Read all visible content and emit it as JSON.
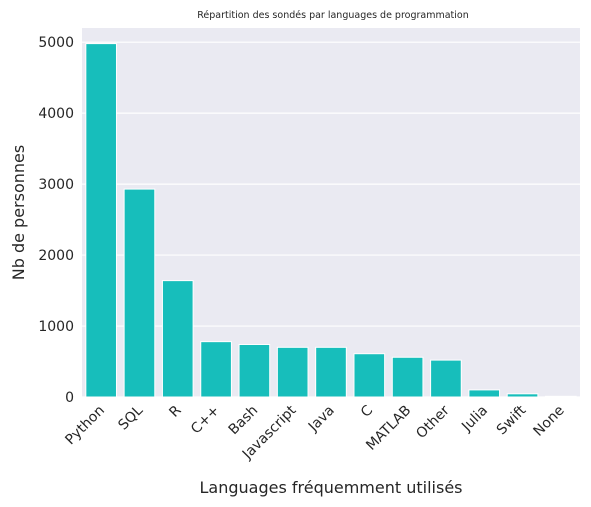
{
  "chart_data": {
    "type": "bar",
    "title": "Répartition des sondés par languages de programmation",
    "xlabel": "Languages fréquemment utilisés",
    "ylabel": "Nb de personnes",
    "categories": [
      "Python",
      "SQL",
      "R",
      "C++",
      "Bash",
      "Javascript",
      "Java",
      "C",
      "MATLAB",
      "Other",
      "Julia",
      "Swift",
      "None"
    ],
    "values": [
      4980,
      2930,
      1640,
      780,
      740,
      700,
      700,
      610,
      560,
      520,
      100,
      45,
      10
    ],
    "yticks": [
      0,
      1000,
      2000,
      3000,
      4000,
      5000
    ],
    "ylim": [
      0,
      5200
    ],
    "grid": true,
    "colors": {
      "bar": "#17BEBB",
      "background": "#EAEAF2",
      "grid": "#FFFFFF"
    }
  }
}
